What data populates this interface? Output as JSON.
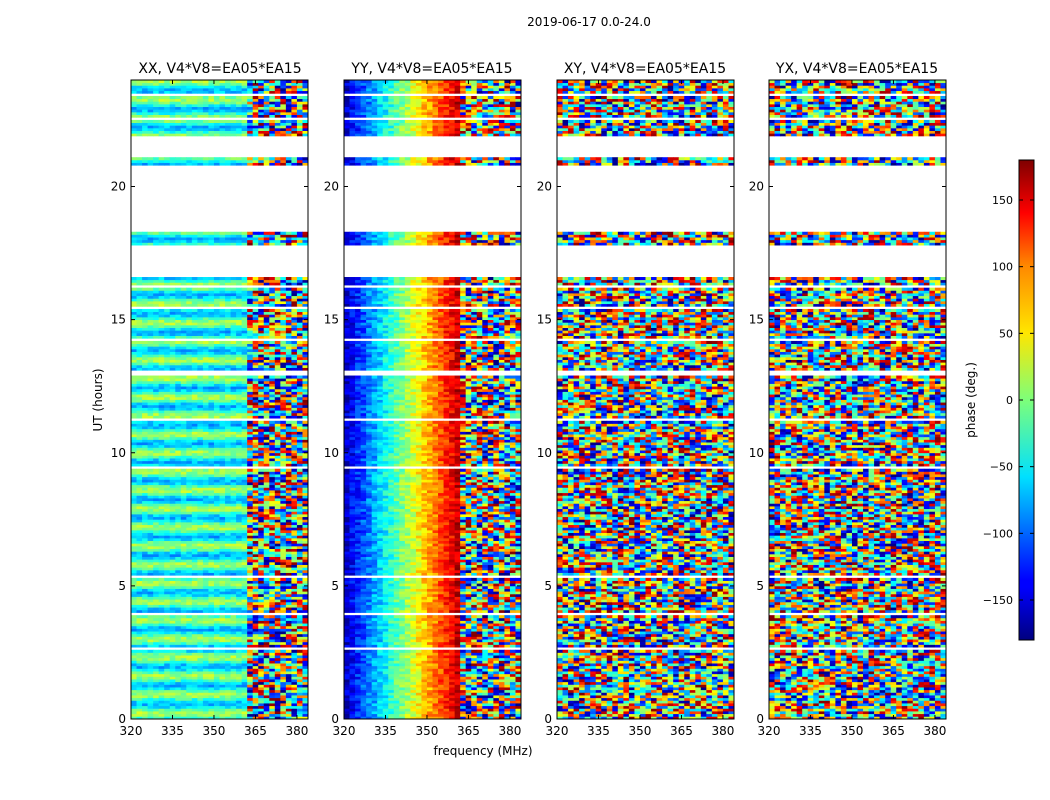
{
  "chart_data": {
    "type": "heatmap",
    "title": "2019-06-17 0.0-24.0",
    "xlabel": "frequency (MHz)",
    "ylabel": "UT (hours)",
    "xlim": [
      320,
      384
    ],
    "ylim": [
      0,
      24
    ],
    "x_ticks": [
      "320",
      "335",
      "350",
      "365",
      "380"
    ],
    "y_ticks": [
      "0",
      "5",
      "10",
      "15",
      "20"
    ],
    "panels": [
      {
        "name": "XX, V4*V8=EA05*EA15",
        "pattern": "smooth-low"
      },
      {
        "name": "YY, V4*V8=EA05*EA15",
        "pattern": "gradient"
      },
      {
        "name": "XY, V4*V8=EA05*EA15",
        "pattern": "noise"
      },
      {
        "name": "YX, V4*V8=EA05*EA15",
        "pattern": "noise"
      }
    ],
    "flagged_ranges_hours": [
      [
        16.6,
        17.8
      ],
      [
        18.3,
        20.8
      ],
      [
        21.1,
        21.9
      ]
    ],
    "blank_bands_hours": [
      [
        2.62,
        2.72
      ],
      [
        3.95,
        4.05
      ],
      [
        5.35,
        5.45
      ],
      [
        9.4,
        9.52
      ],
      [
        11.2,
        11.3
      ],
      [
        12.95,
        13.05
      ],
      [
        14.2,
        14.3
      ],
      [
        15.45,
        15.55
      ],
      [
        16.25,
        16.35
      ],
      [
        22.55,
        22.65
      ],
      [
        23.4,
        23.5
      ]
    ],
    "colorbar": {
      "label": "phase (deg.)",
      "range": [
        -180,
        180
      ],
      "ticks": [
        "150",
        "100",
        "50",
        "0",
        "−50",
        "−100",
        "−150"
      ],
      "tick_values": [
        150,
        100,
        50,
        0,
        -50,
        -100,
        -150
      ],
      "colormap": "jet"
    }
  }
}
